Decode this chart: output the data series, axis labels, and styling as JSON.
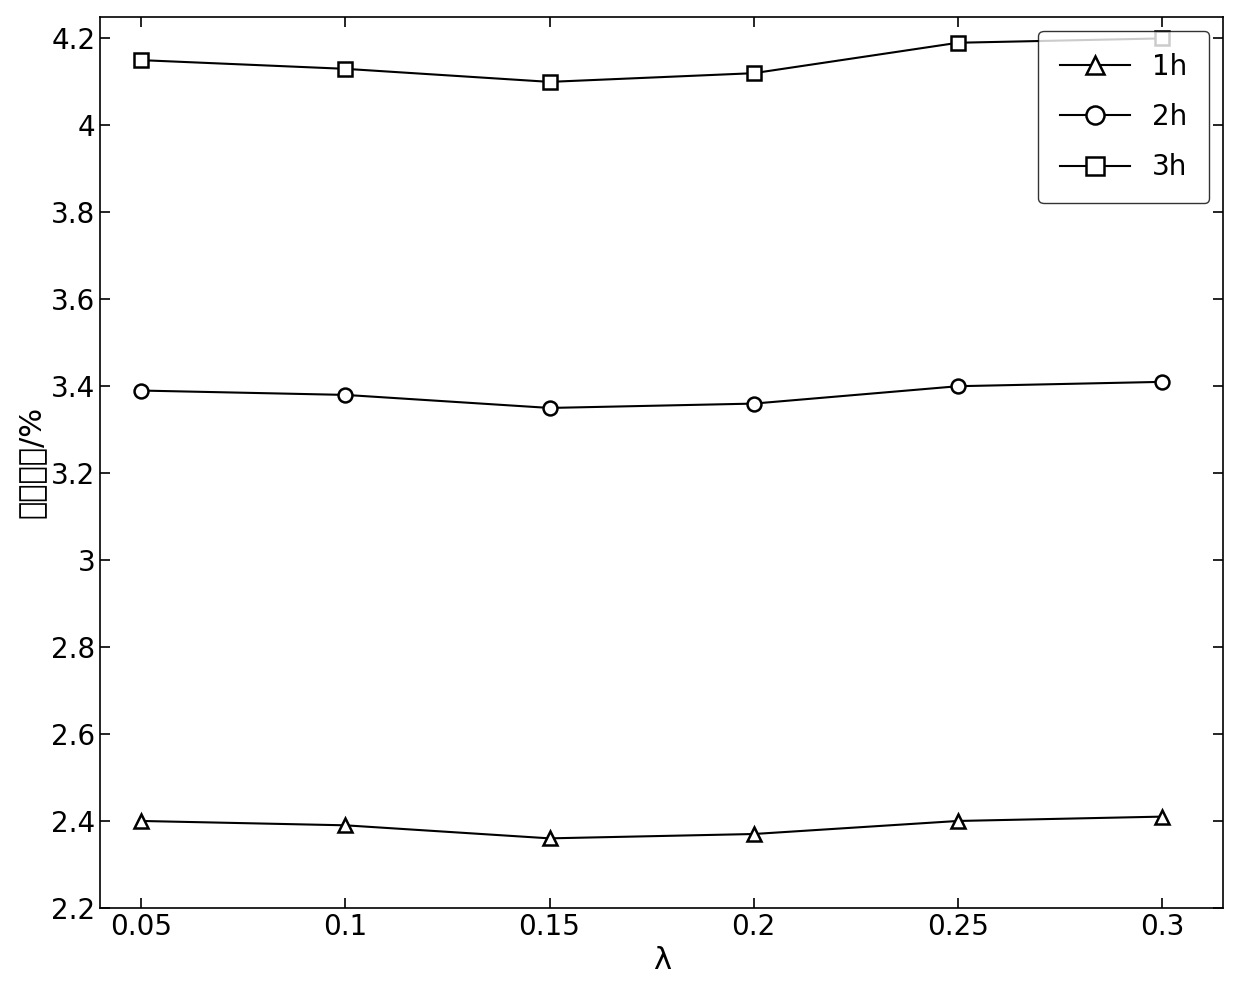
{
  "x": [
    0.05,
    0.1,
    0.15,
    0.2,
    0.25,
    0.3
  ],
  "y_1h": [
    2.4,
    2.39,
    2.36,
    2.37,
    2.4,
    2.41
  ],
  "y_2h": [
    3.39,
    3.38,
    3.35,
    3.36,
    3.4,
    3.41
  ],
  "y_3h": [
    4.15,
    4.13,
    4.1,
    4.12,
    4.19,
    4.2
  ],
  "xlabel": "λ",
  "ylabel": "平均误差/%",
  "xlim": [
    0.04,
    0.315
  ],
  "ylim": [
    2.2,
    4.25
  ],
  "yticks": [
    2.2,
    2.4,
    2.6,
    2.8,
    3.0,
    3.2,
    3.4,
    3.6,
    3.8,
    4.0,
    4.2
  ],
  "ytick_labels": [
    "2.2",
    "2.4",
    "2.6",
    "2.8",
    "3",
    "3.2",
    "3.4",
    "3.6",
    "3.8",
    "4",
    "4.2"
  ],
  "xticks": [
    0.05,
    0.1,
    0.15,
    0.2,
    0.25,
    0.3
  ],
  "xtick_labels": [
    "0.05",
    "0.1",
    "0.15",
    "0.2",
    "0.25",
    "0.3"
  ],
  "line_color": "#000000",
  "legend_labels": [
    "1h",
    "2h",
    "3h"
  ],
  "marker_1h": "^",
  "marker_2h": "o",
  "marker_3h": "s",
  "linewidth": 1.5,
  "markersize": 10,
  "fontsize_ticks": 20,
  "fontsize_label": 22,
  "fontsize_legend": 20
}
